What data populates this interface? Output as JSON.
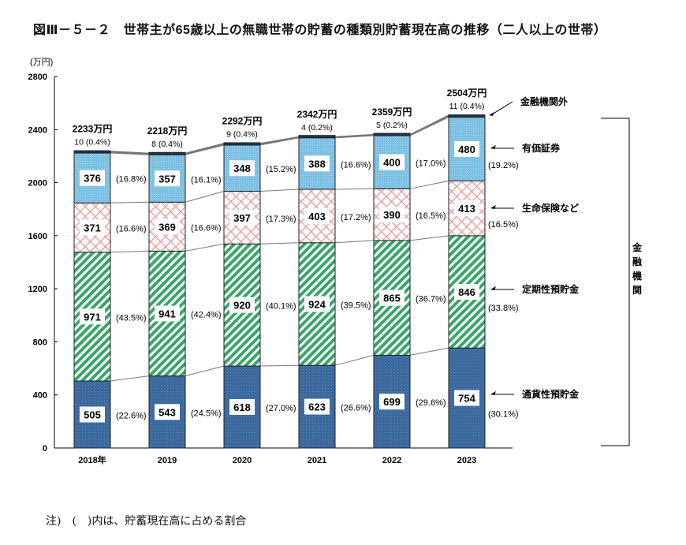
{
  "chart_data": {
    "type": "bar",
    "stacked": true,
    "title": "図Ⅲ－５－２　世帯主が65歳以上の無職世帯の貯蓄の種類別貯蓄現在高の推移（二人以上の世帯）",
    "ylabel": "(万円)",
    "ylim": [
      0,
      2800
    ],
    "yticks": [
      0,
      400,
      800,
      1200,
      1600,
      2000,
      2400,
      2800
    ],
    "categories": [
      "2018年",
      "2019",
      "2020",
      "2021",
      "2022",
      "2023"
    ],
    "totals": [
      "2233万円",
      "2218万円",
      "2292万円",
      "2342万円",
      "2359万円",
      "2504万円"
    ],
    "series": [
      {
        "name": "通貨性預貯金",
        "color": "#3d6a9e",
        "values": [
          505,
          543,
          618,
          623,
          699,
          754
        ],
        "pct": [
          "(22.6%)",
          "(24.5%)",
          "(27.0%)",
          "(26.6%)",
          "(29.6%)",
          "(30.1%)"
        ]
      },
      {
        "name": "定期性預貯金",
        "color": "#3aa66a",
        "values": [
          971,
          941,
          920,
          924,
          865,
          846
        ],
        "pct": [
          "(43.5%)",
          "(42.4%)",
          "(40.1%)",
          "(39.5%)",
          "(36.7%)",
          "(33.8%)"
        ]
      },
      {
        "name": "生命保険など",
        "color": "#e8a0a0",
        "values": [
          371,
          369,
          397,
          403,
          390,
          413
        ],
        "pct": [
          "(16.6%)",
          "(16.6%)",
          "(17.3%)",
          "(17.2%)",
          "(16.5%)",
          "(16.5%)"
        ]
      },
      {
        "name": "有価証券",
        "color": "#79bde0",
        "values": [
          376,
          357,
          348,
          388,
          400,
          480
        ],
        "pct": [
          "(16.8%)",
          "(16.1%)",
          "(15.2%)",
          "(16.6%)",
          "(17.0%)",
          "(19.2%)"
        ]
      },
      {
        "name": "金融機関外",
        "color": "#1f3550",
        "values": [
          10,
          8,
          9,
          4,
          5,
          11
        ],
        "pct": [
          "(0.4%)",
          "(0.4%)",
          "(0.4%)",
          "(0.2%)",
          "(0.2%)",
          "(0.4%)"
        ]
      }
    ],
    "bracket_label": "金融機関",
    "note": "注)　(　)内は、貯蓄現在高に占める割合"
  }
}
